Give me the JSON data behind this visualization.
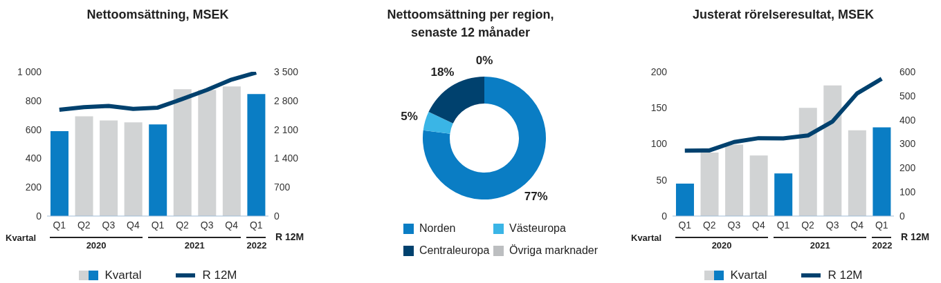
{
  "chart_data": [
    {
      "type": "bar",
      "title": "Nettoomsättning, MSEK",
      "xlabel": "Kvartal",
      "y2label": "R 12M",
      "categories": [
        "Q1",
        "Q2",
        "Q3",
        "Q4",
        "Q1",
        "Q2",
        "Q3",
        "Q4",
        "Q1"
      ],
      "series": [
        {
          "name": "Kvartal",
          "type": "bar",
          "colors": [
            "#0a7dc4",
            "#d1d3d4",
            "#d1d3d4",
            "#d1d3d4",
            "#0a7dc4",
            "#d1d3d4",
            "#d1d3d4",
            "#d1d3d4",
            "#0a7dc4"
          ],
          "values": [
            588,
            691,
            663,
            649,
            635,
            879,
            875,
            898,
            846
          ]
        },
        {
          "name": "R 12M",
          "type": "line",
          "axis": "y2",
          "color": "#00416e",
          "values": [
            2580,
            2640,
            2670,
            2600,
            2630,
            2840,
            3060,
            3310,
            3480
          ]
        }
      ],
      "ylim": [
        0,
        1000
      ],
      "yticks": [
        0,
        200,
        400,
        600,
        800,
        {
          "value": 1000,
          "label": "1 000"
        }
      ],
      "y2lim": [
        0,
        3500
      ],
      "y2ticks": [
        0,
        700,
        {
          "value": 1400,
          "label": "1 400"
        },
        {
          "value": 2100,
          "label": "2 100"
        },
        {
          "value": 2800,
          "label": "2 800"
        },
        {
          "value": 3500,
          "label": "3 500"
        }
      ],
      "annotations": [
        "2020",
        "2021",
        "2022"
      ],
      "legend": "bottom"
    },
    {
      "type": "donut",
      "title": "Nettoomsättning per region, senaste 12 månader",
      "categories": [
        "Norden",
        "Västeuropa",
        "Centraleuropa",
        "Övriga marknader"
      ],
      "values": [
        77,
        5,
        18,
        0
      ],
      "colors": [
        "#0a7dc4",
        "#3ab5e6",
        "#00416e",
        "#bcbec0"
      ],
      "value_labels": [
        "77%",
        "5%",
        "18%",
        "0%"
      ],
      "legend": "bottom"
    },
    {
      "type": "bar",
      "title": "Justerat rörelseresultat, MSEK",
      "xlabel": "Kvartal",
      "y2label": "R 12M",
      "categories": [
        "Q1",
        "Q2",
        "Q3",
        "Q4",
        "Q1",
        "Q2",
        "Q3",
        "Q4",
        "Q1"
      ],
      "series": [
        {
          "name": "Kvartal",
          "type": "bar",
          "colors": [
            "#0a7dc4",
            "#d1d3d4",
            "#d1d3d4",
            "#d1d3d4",
            "#0a7dc4",
            "#d1d3d4",
            "#d1d3d4",
            "#d1d3d4",
            "#0a7dc4"
          ],
          "values": [
            45,
            88,
            99,
            84,
            59,
            150,
            181,
            119,
            123
          ]
        },
        {
          "name": "R 12M",
          "type": "line",
          "axis": "y2",
          "color": "#00416e",
          "values": [
            272,
            273,
            308,
            324,
            323,
            335,
            393,
            510,
            571
          ]
        }
      ],
      "ylim": [
        0,
        200
      ],
      "yticks": [
        0,
        50,
        100,
        150,
        200
      ],
      "y2lim": [
        0,
        600
      ],
      "y2ticks": [
        0,
        100,
        200,
        300,
        400,
        500,
        600
      ],
      "annotations": [
        "2020",
        "2021",
        "2022"
      ],
      "legend": "bottom"
    }
  ]
}
